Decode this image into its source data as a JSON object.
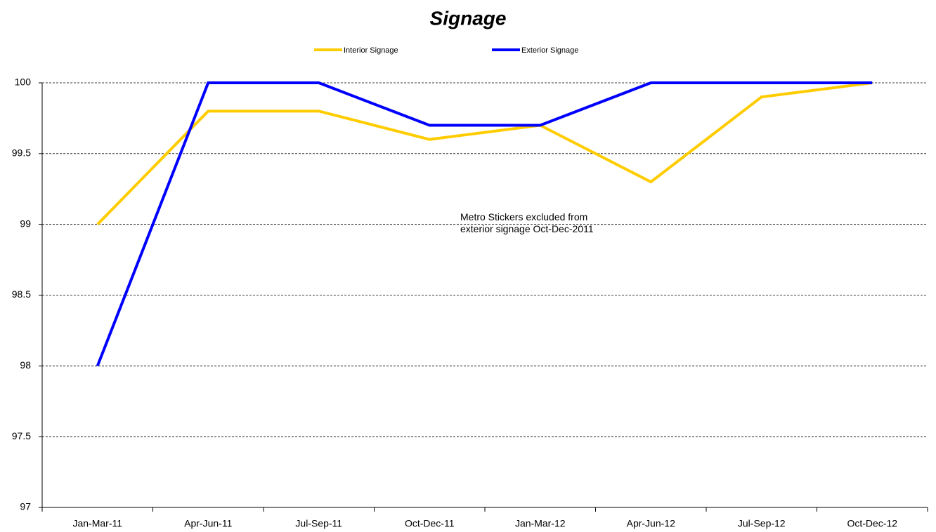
{
  "chart_data": {
    "type": "line",
    "title": "Signage",
    "categories": [
      "Jan-Mar-11",
      "Apr-Jun-11",
      "Jul-Sep-11",
      "Oct-Dec-11",
      "Jan-Mar-12",
      "Apr-Jun-12",
      "Jul-Sep-12",
      "Oct-Dec-12"
    ],
    "series": [
      {
        "name": "Interior Signage",
        "color": "#ffcc00",
        "values": [
          99,
          99.8,
          99.8,
          99.6,
          99.7,
          99.3,
          99.9,
          100
        ]
      },
      {
        "name": "Exterior Signage",
        "color": "#0000ff",
        "values": [
          98,
          100,
          100,
          99.7,
          99.7,
          100,
          100,
          100
        ]
      }
    ],
    "ylim": [
      97,
      100
    ],
    "yticks": [
      97,
      97.5,
      98,
      98.5,
      99,
      99.5,
      100
    ],
    "grid": true,
    "legend": "top",
    "annotations": [
      "Metro Stickers excluded from exterior signage Oct-Dec-2011"
    ]
  }
}
